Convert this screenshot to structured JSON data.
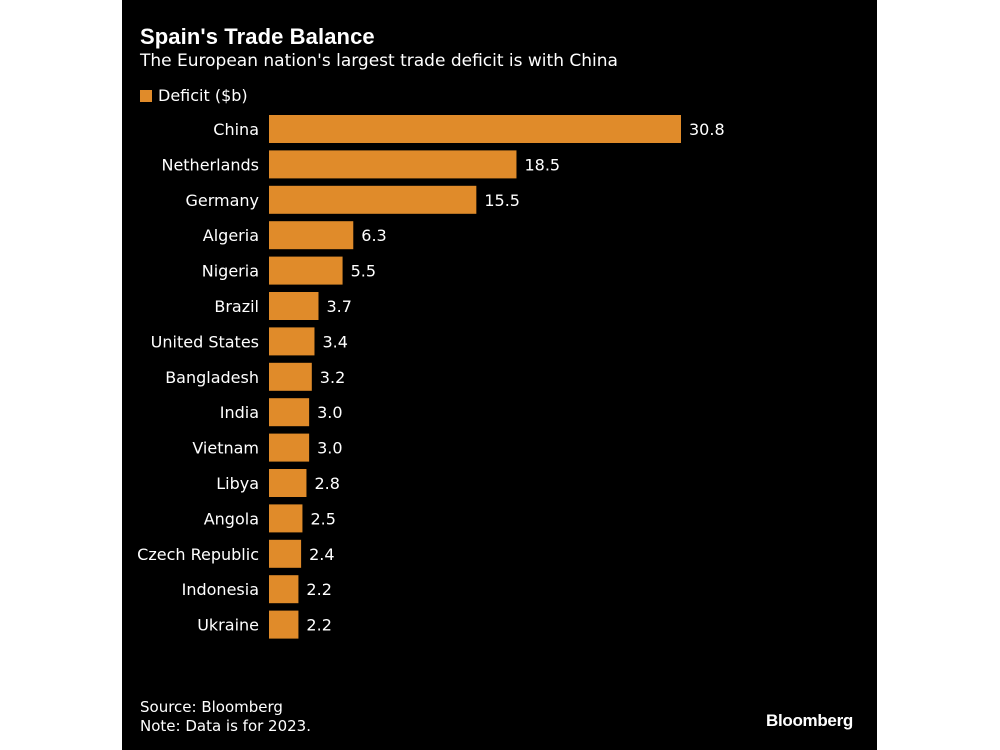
{
  "colors": {
    "background": "#000000",
    "bar": "#E08B2A",
    "text": "#FFFFFF"
  },
  "footer": {
    "source": "Source: Bloomberg",
    "note": "Note: Data is for 2023."
  },
  "logo_text": "Bloomberg",
  "chart_data": {
    "type": "bar",
    "orientation": "horizontal",
    "title": "Spain's Trade Balance",
    "subtitle": "The European nation's largest trade deficit is with China",
    "legend": [
      "Deficit ($b)"
    ],
    "legend_position": "top-left",
    "grid": false,
    "xlim": [
      0,
      30.8
    ],
    "categories": [
      "China",
      "Netherlands",
      "Germany",
      "Algeria",
      "Nigeria",
      "Brazil",
      "United States",
      "Bangladesh",
      "India",
      "Vietnam",
      "Libya",
      "Angola",
      "Czech Republic",
      "Indonesia",
      "Ukraine"
    ],
    "series": [
      {
        "name": "Deficit ($b)",
        "values": [
          30.8,
          18.5,
          15.5,
          6.3,
          5.5,
          3.7,
          3.4,
          3.2,
          3.0,
          3.0,
          2.8,
          2.5,
          2.4,
          2.2,
          2.2
        ],
        "labels": [
          "30.8",
          "18.5",
          "15.5",
          "6.3",
          "5.5",
          "3.7",
          "3.4",
          "3.2",
          "3.0",
          "3.0",
          "2.8",
          "2.5",
          "2.4",
          "2.2",
          "2.2"
        ]
      }
    ]
  }
}
